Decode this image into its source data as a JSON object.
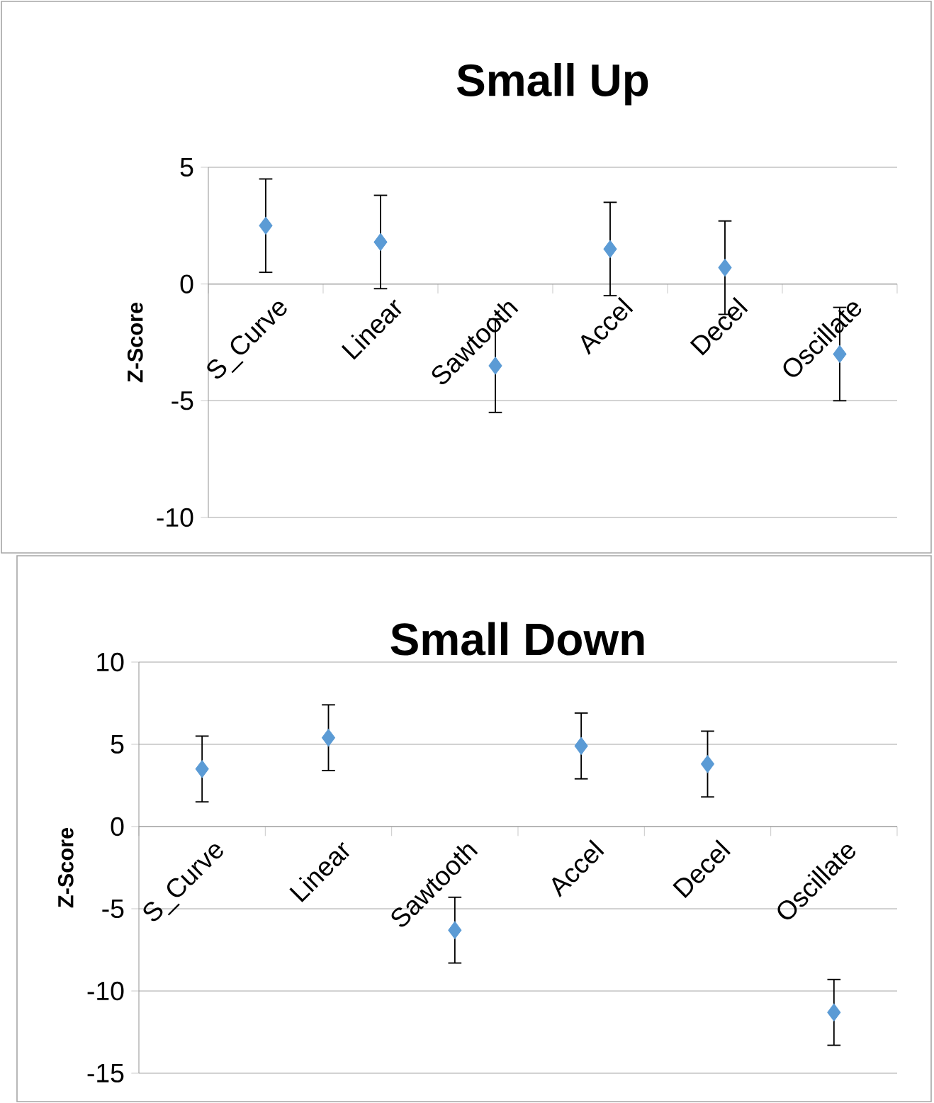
{
  "chart_data": [
    {
      "type": "scatter",
      "title": "Small Up",
      "ylabel": "Z-Score",
      "categories": [
        "S_Curve",
        "Linear",
        "Sawtooth",
        "Accel",
        "Decel",
        "Oscillate"
      ],
      "values": [
        2.5,
        1.8,
        -3.5,
        1.5,
        0.7,
        -3.0
      ],
      "errors": [
        2,
        2,
        2,
        2,
        2,
        2
      ],
      "color": "#5b9bd5",
      "ylim": [
        -10,
        5
      ],
      "yticks": [
        -10,
        -5,
        0,
        5
      ],
      "grid": "y",
      "marker": "diamond"
    },
    {
      "type": "scatter",
      "title": "Small Down",
      "ylabel": "Z-Score",
      "categories": [
        "S_Curve",
        "Linear",
        "Sawtooth",
        "Accel",
        "Decel",
        "Oscillate"
      ],
      "values": [
        3.5,
        5.4,
        -6.3,
        4.9,
        3.8,
        -11.3
      ],
      "errors": [
        2,
        2,
        2,
        2,
        2,
        2
      ],
      "color": "#5b9bd5",
      "ylim": [
        -15,
        10
      ],
      "yticks": [
        -15,
        -10,
        -5,
        0,
        5,
        10
      ],
      "grid": "y",
      "marker": "diamond"
    }
  ]
}
